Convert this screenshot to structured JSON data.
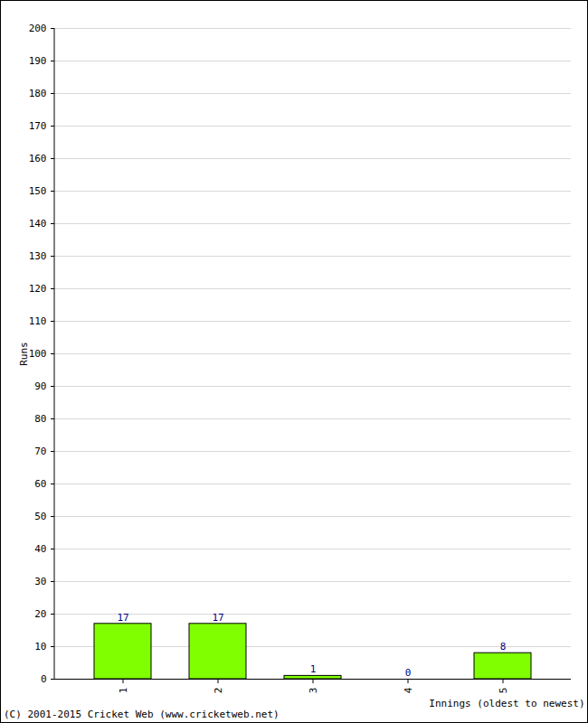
{
  "chart_data": {
    "type": "bar",
    "categories": [
      "1",
      "2",
      "3",
      "4",
      "5"
    ],
    "values": [
      17,
      17,
      1,
      0,
      8
    ],
    "color": "#80ff00",
    "x_label": "Innings (oldest to newest)",
    "y_label": "Runs",
    "caption": "(C) 2001-2015 Cricket Web (www.cricketweb.net)",
    "ylim": [
      0,
      200
    ],
    "yticks": [
      0,
      10,
      20,
      30,
      40,
      50,
      60,
      70,
      80,
      90,
      100,
      110,
      120,
      130,
      140,
      150,
      160,
      170,
      180,
      190,
      200
    ],
    "grid": true,
    "data_labels": true
  }
}
